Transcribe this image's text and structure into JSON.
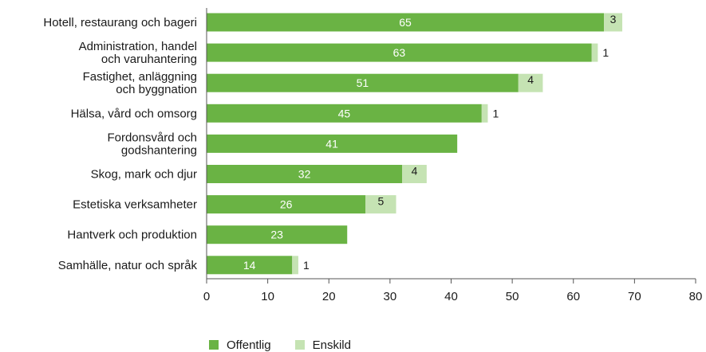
{
  "chart_data": {
    "type": "bar",
    "orientation": "horizontal",
    "stacked": true,
    "categories": [
      [
        "Hotell, restaurang och bageri"
      ],
      [
        "Administration, handel",
        "och varuhantering"
      ],
      [
        "Fastighet, anläggning",
        "och byggnation"
      ],
      [
        "Hälsa, vård och omsorg"
      ],
      [
        "Fordonsvård och",
        "godshantering"
      ],
      [
        "Skog, mark och djur"
      ],
      [
        "Estetiska verksamheter"
      ],
      [
        "Hantverk och produktion"
      ],
      [
        "Samhälle, natur och språk"
      ]
    ],
    "series": [
      {
        "name": "Offentlig",
        "color": "#6ab344",
        "values": [
          65,
          63,
          51,
          45,
          41,
          32,
          26,
          23,
          14
        ]
      },
      {
        "name": "Enskild",
        "color": "#c5e3b3",
        "values": [
          3,
          1,
          4,
          1,
          0,
          4,
          5,
          0,
          1
        ]
      }
    ],
    "xlim": [
      0,
      80
    ],
    "xticks": [
      0,
      10,
      20,
      30,
      40,
      50,
      60,
      70,
      80
    ],
    "grid": false,
    "legend_position": "bottom-left"
  }
}
